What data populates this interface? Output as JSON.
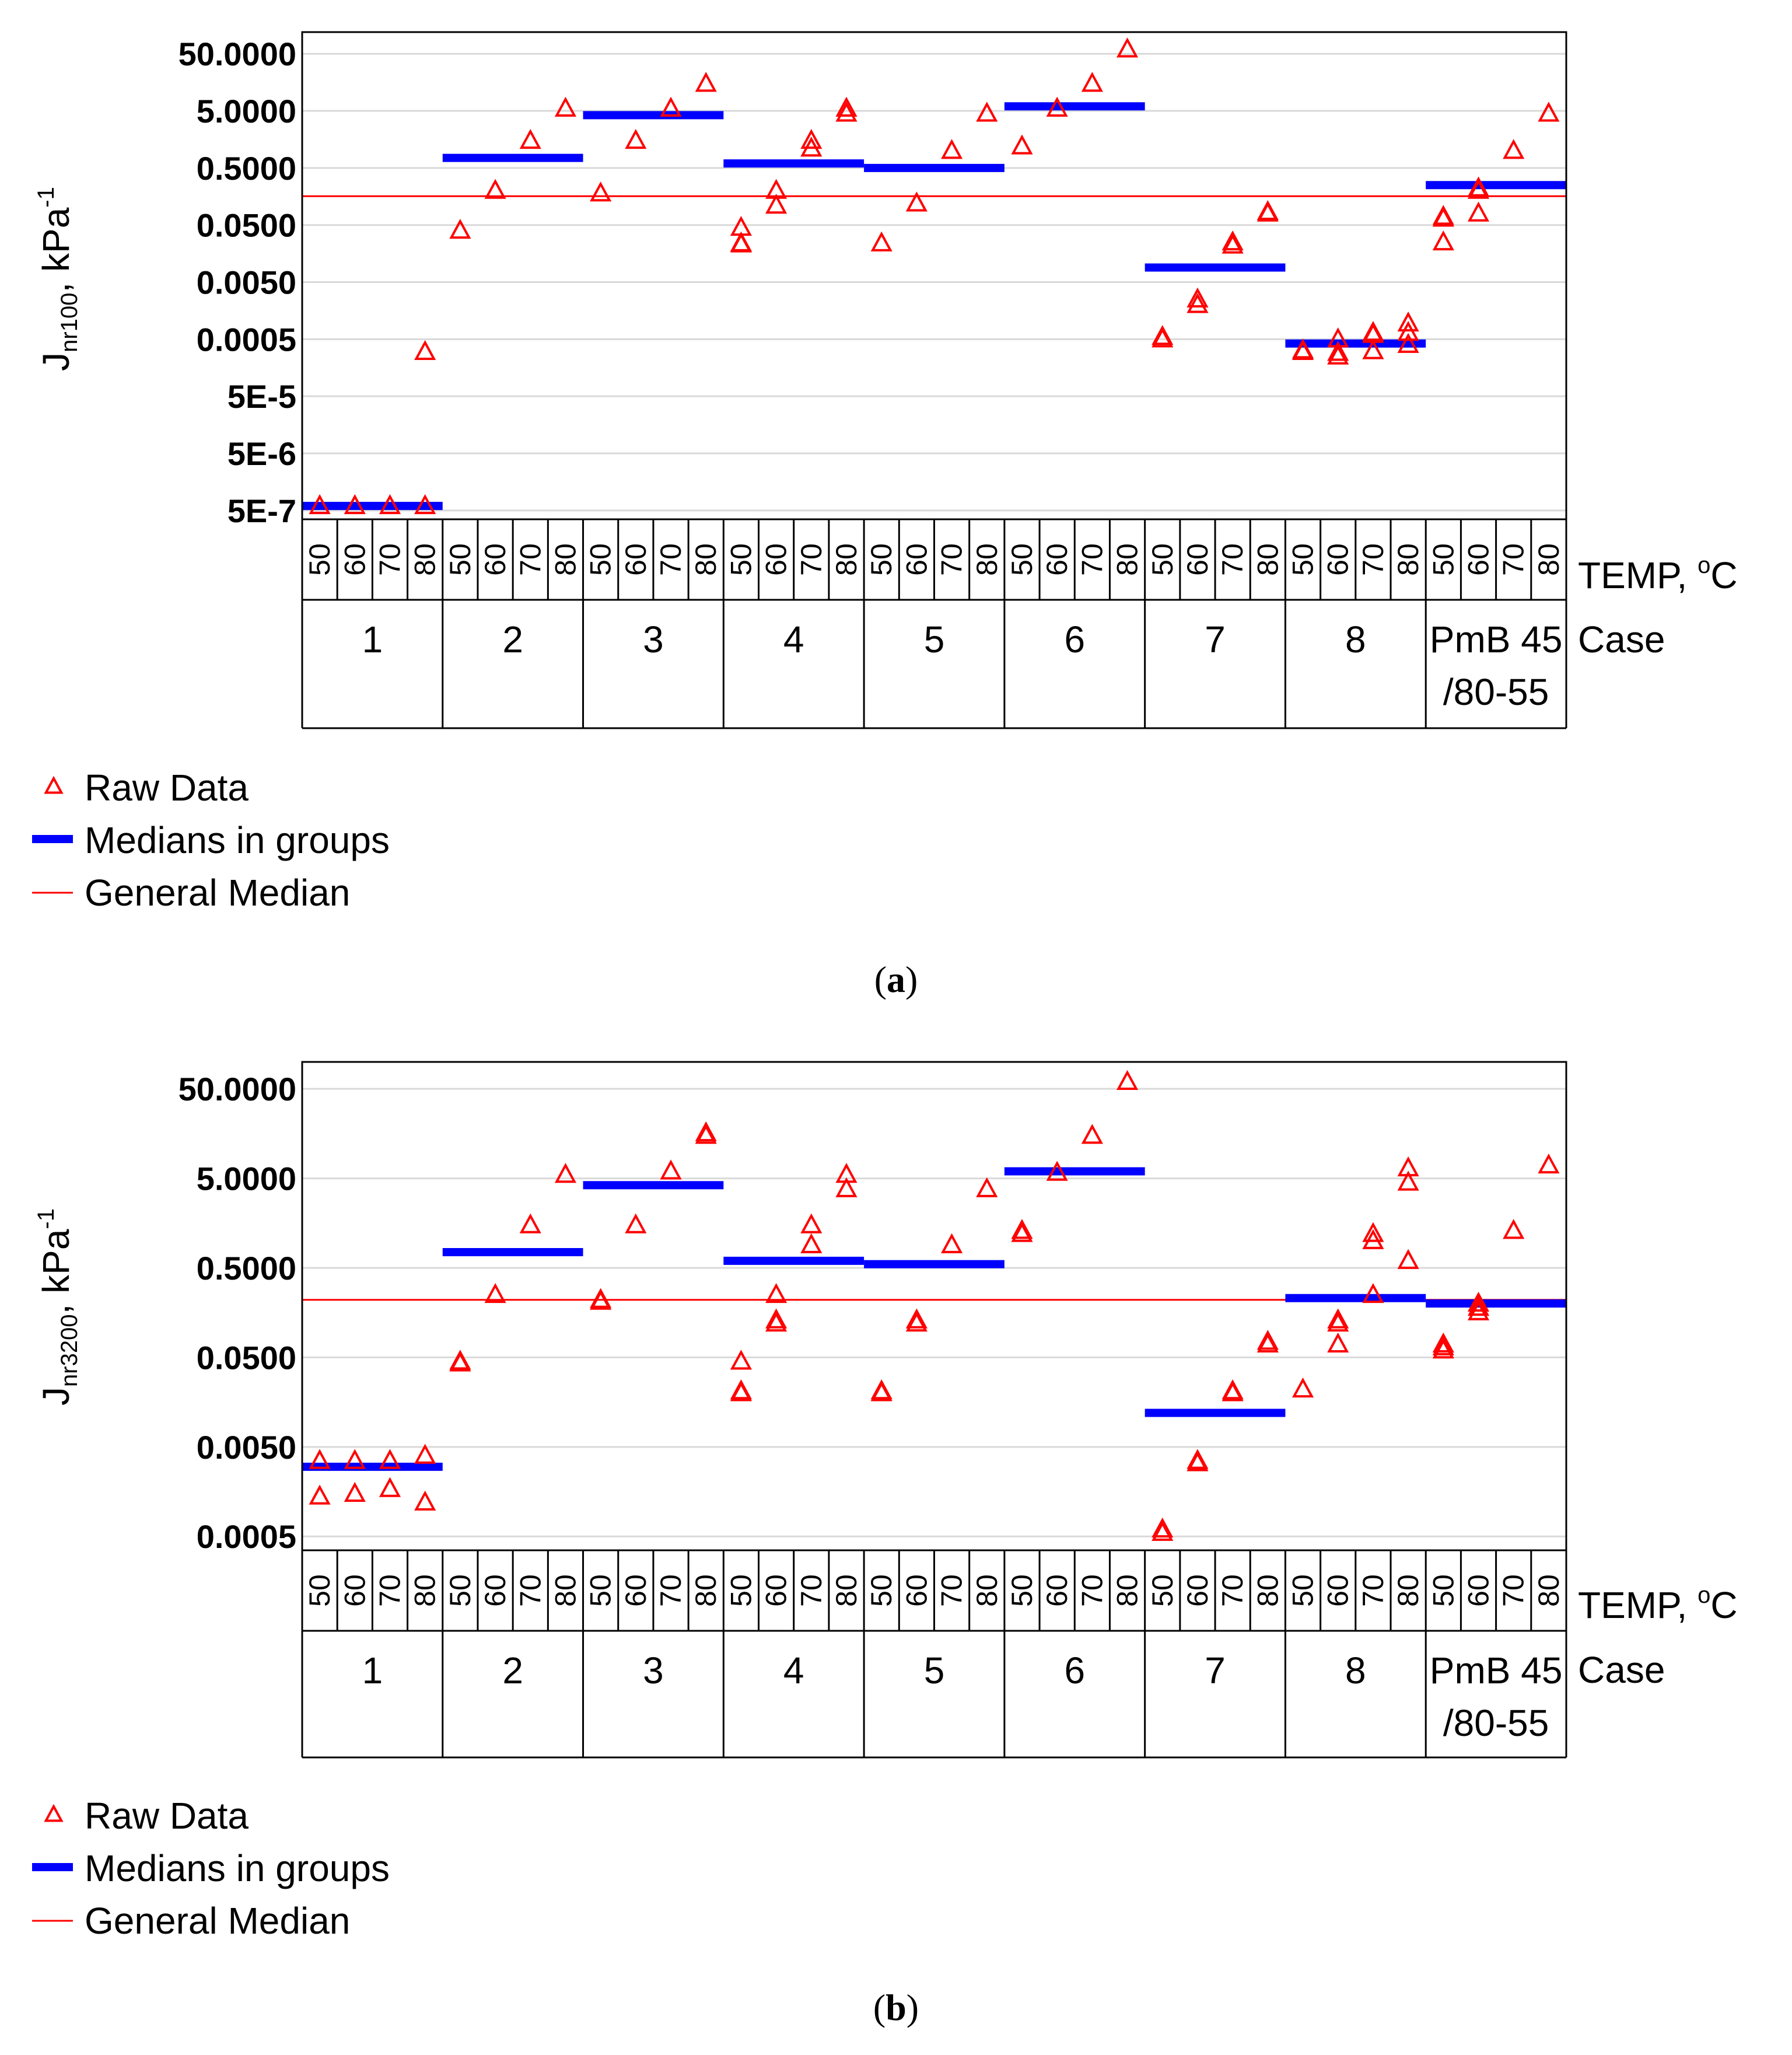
{
  "colors": {
    "raw": "#ff0000",
    "medians": "#0000ff",
    "general_median": "#ff0000"
  },
  "chart_data": [
    {
      "type": "scatter",
      "panel_label": "a",
      "ylabel_main": "J",
      "ylabel_sub": "nr100",
      "ylabel_unit": ", kPa",
      "ylabel_exp": "-1",
      "yscale": "log",
      "ylim": [
        3.5e-07,
        120
      ],
      "yticks": [
        {
          "value": 50,
          "label": "50.0000"
        },
        {
          "value": 5,
          "label": "5.0000"
        },
        {
          "value": 0.5,
          "label": "0.5000"
        },
        {
          "value": 0.05,
          "label": "0.0500"
        },
        {
          "value": 0.005,
          "label": "0.0050"
        },
        {
          "value": 0.0005,
          "label": "0.0005"
        },
        {
          "value": 5e-05,
          "label": "5E-5"
        },
        {
          "value": 5e-06,
          "label": "5E-6"
        },
        {
          "value": 5e-07,
          "label": "5E-7"
        }
      ],
      "temp_axis_label": "TEMP, ",
      "temp_axis_unit": "C",
      "case_axis_label": "Case",
      "temperatures": [
        "50",
        "60",
        "70",
        "80"
      ],
      "cases": [
        {
          "label": "1"
        },
        {
          "label": "2"
        },
        {
          "label": "3"
        },
        {
          "label": "4"
        },
        {
          "label": "5"
        },
        {
          "label": "6"
        },
        {
          "label": "7"
        },
        {
          "label": "8"
        },
        {
          "label": "PmB 45",
          "label2": "/80-55"
        }
      ],
      "raw_data": [
        [
          [
            6e-07
          ],
          [
            6e-07
          ],
          [
            6e-07
          ],
          [
            6e-07,
            0.0003
          ]
        ],
        [
          [
            0.04
          ],
          [
            0.2
          ],
          [
            1.5
          ],
          [
            5.5
          ]
        ],
        [
          [
            0.18
          ],
          [
            1.5
          ],
          [
            5.5
          ],
          [
            15
          ]
        ],
        [
          [
            0.045,
            0.023,
            0.024
          ],
          [
            0.2,
            0.11
          ],
          [
            1.5,
            1.1
          ],
          [
            5.5,
            4.5
          ]
        ],
        [
          [
            0.024
          ],
          [
            0.12
          ],
          [
            1.0
          ],
          [
            4.5
          ]
        ],
        [
          [
            1.2
          ],
          [
            5.5
          ],
          [
            15
          ],
          [
            60
          ]
        ],
        [
          [
            0.0005,
            0.00055
          ],
          [
            0.002,
            0.0025
          ],
          [
            0.025,
            0.022
          ],
          [
            0.08,
            0.085
          ]
        ],
        [
          [
            0.0003,
            0.00032
          ],
          [
            0.0005,
            0.00025,
            0.00029
          ],
          [
            0.00065,
            0.0006,
            0.00031
          ],
          [
            0.00095,
            0.00065,
            0.0004
          ]
        ],
        [
          [
            0.07,
            0.065,
            0.025
          ],
          [
            0.22,
            0.2,
            0.08
          ],
          [
            1.0
          ],
          [
            4.5
          ]
        ]
      ],
      "group_medians": [
        6e-07,
        0.75,
        4.2,
        0.6,
        0.5,
        6.0,
        0.009,
        0.00042,
        0.25
      ],
      "general_median": 0.16,
      "legend": {
        "raw": "Raw Data",
        "medians": "Medians in groups",
        "general": "General Median"
      }
    },
    {
      "type": "scatter",
      "panel_label": "b",
      "ylabel_main": "J",
      "ylabel_sub": "nr3200",
      "ylabel_unit": ", kPa",
      "ylabel_exp": "-1",
      "yscale": "log",
      "ylim": [
        0.00035,
        100
      ],
      "yticks": [
        {
          "value": 50,
          "label": "50.0000"
        },
        {
          "value": 5,
          "label": "5.0000"
        },
        {
          "value": 0.5,
          "label": "0.5000"
        },
        {
          "value": 0.05,
          "label": "0.0500"
        },
        {
          "value": 0.005,
          "label": "0.0050"
        },
        {
          "value": 0.0005,
          "label": "0.0005"
        }
      ],
      "temp_axis_label": "TEMP, ",
      "temp_axis_unit": "C",
      "case_axis_label": "Case",
      "temperatures": [
        "50",
        "60",
        "70",
        "80"
      ],
      "cases": [
        {
          "label": "1"
        },
        {
          "label": "2"
        },
        {
          "label": "3"
        },
        {
          "label": "4"
        },
        {
          "label": "5"
        },
        {
          "label": "6"
        },
        {
          "label": "7"
        },
        {
          "label": "8"
        },
        {
          "label": "PmB 45",
          "label2": "/80-55"
        }
      ],
      "raw_data": [
        [
          [
            0.0035,
            0.0014
          ],
          [
            0.0035,
            0.0015
          ],
          [
            0.0035,
            0.0017
          ],
          [
            0.004,
            0.0012
          ]
        ],
        [
          [
            0.043,
            0.045
          ],
          [
            0.25
          ],
          [
            1.5
          ],
          [
            5.5
          ]
        ],
        [
          [
            0.21,
            0.22
          ],
          [
            1.5
          ],
          [
            6.0
          ],
          [
            15,
            16
          ]
        ],
        [
          [
            0.045,
            0.02,
            0.021
          ],
          [
            0.25,
            0.12,
            0.13
          ],
          [
            1.5,
            0.9
          ],
          [
            5.5,
            3.8
          ]
        ],
        [
          [
            0.021,
            0.02
          ],
          [
            0.13,
            0.12
          ],
          [
            0.9
          ],
          [
            3.8
          ]
        ],
        [
          [
            1.3,
            1.2
          ],
          [
            5.8
          ],
          [
            15
          ],
          [
            60
          ]
        ],
        [
          [
            0.0006,
            0.00055
          ],
          [
            0.0035,
            0.0033
          ],
          [
            0.021,
            0.02
          ],
          [
            0.075,
            0.07
          ]
        ],
        [
          [
            0.022
          ],
          [
            0.13,
            0.12,
            0.07
          ],
          [
            1.2,
            1.0,
            0.25
          ],
          [
            6.5,
            4.5,
            0.6
          ]
        ],
        [
          [
            0.07,
            0.065,
            0.06
          ],
          [
            0.2,
            0.18,
            0.16
          ],
          [
            1.3
          ],
          [
            7.0
          ]
        ]
      ],
      "group_medians": [
        0.003,
        0.75,
        4.2,
        0.6,
        0.55,
        6.0,
        0.012,
        0.23,
        0.2
      ],
      "general_median": 0.22,
      "legend": {
        "raw": "Raw Data",
        "medians": "Medians in groups",
        "general": "General Median"
      }
    }
  ]
}
